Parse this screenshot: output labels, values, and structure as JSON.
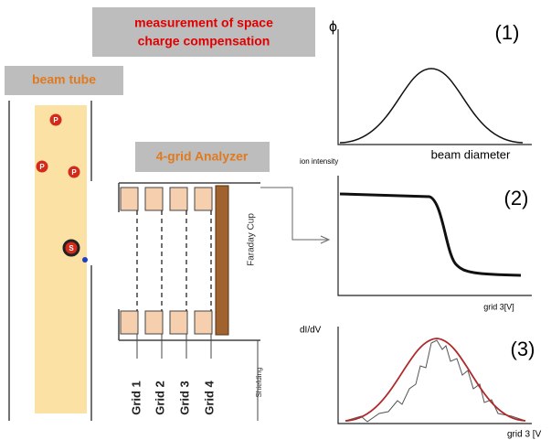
{
  "title": {
    "lines": [
      "measurement of space",
      "charge compensation"
    ]
  },
  "beam_tube": {
    "label": "beam tube",
    "particles": [
      "P",
      "P",
      "P"
    ],
    "secondary": "S"
  },
  "analyzer": {
    "label": "4-grid Analyzer",
    "faraday_cup": "Faraday Cup",
    "grids": [
      "Grid 1",
      "Grid 2",
      "Grid 3",
      "Grid 4"
    ],
    "shielding": "Shielding"
  },
  "plots": [
    {
      "number": "(1)",
      "y_label": "ϕ",
      "x_label": "beam diameter"
    },
    {
      "number": "(2)",
      "y_label": "ion intensity",
      "x_label": "grid 3[V]"
    },
    {
      "number": "(3)",
      "y_label": "dI/dV",
      "x_label": "grid 3 [V"
    }
  ]
}
